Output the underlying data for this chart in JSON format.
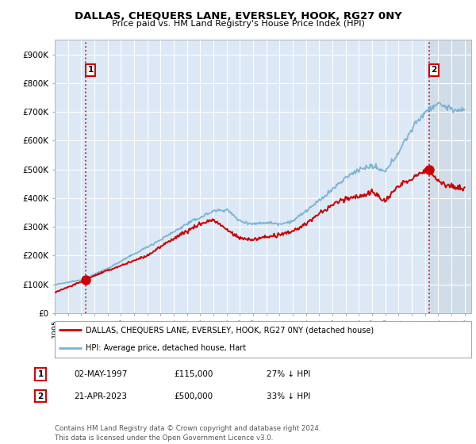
{
  "title": "DALLAS, CHEQUERS LANE, EVERSLEY, HOOK, RG27 0NY",
  "subtitle": "Price paid vs. HM Land Registry's House Price Index (HPI)",
  "ylim": [
    0,
    950000
  ],
  "yticks": [
    0,
    100000,
    200000,
    300000,
    400000,
    500000,
    600000,
    700000,
    800000,
    900000
  ],
  "ytick_labels": [
    "£0",
    "£100K",
    "£200K",
    "£300K",
    "£400K",
    "£500K",
    "£600K",
    "£700K",
    "£800K",
    "£900K"
  ],
  "background_color": "#ffffff",
  "plot_bg_color": "#dce8f5",
  "grid_color": "#ffffff",
  "hpi_color": "#7ab0d4",
  "price_color": "#cc0000",
  "sale1_date": 1997.33,
  "sale1_price": 115000,
  "sale1_label": "1",
  "sale2_date": 2023.31,
  "sale2_price": 500000,
  "sale2_label": "2",
  "legend_entry1": "DALLAS, CHEQUERS LANE, EVERSLEY, HOOK, RG27 0NY (detached house)",
  "legend_entry2": "HPI: Average price, detached house, Hart",
  "table_row1": [
    "1",
    "02-MAY-1997",
    "£115,000",
    "27% ↓ HPI"
  ],
  "table_row2": [
    "2",
    "21-APR-2023",
    "£500,000",
    "33% ↓ HPI"
  ],
  "footer": "Contains HM Land Registry data © Crown copyright and database right 2024.\nThis data is licensed under the Open Government Licence v3.0.",
  "xmin": 1995.0,
  "xmax": 2026.5
}
